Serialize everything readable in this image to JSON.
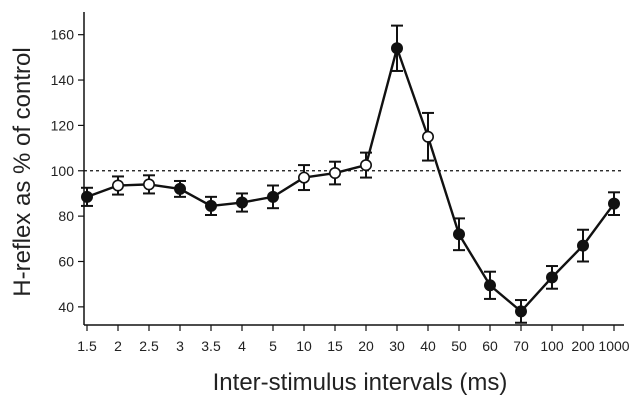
{
  "chart_data": {
    "type": "line",
    "xlabel": "Inter-stimulus intervals (ms)",
    "ylabel": "H-reflex as % of control",
    "ylim": [
      32,
      170
    ],
    "yticks": [
      40,
      60,
      80,
      100,
      120,
      140,
      160
    ],
    "reference_line": 100,
    "grid": false,
    "categories": [
      "1.5",
      "2",
      "2.5",
      "3",
      "3.5",
      "4",
      "5",
      "10",
      "15",
      "20",
      "30",
      "40",
      "50",
      "60",
      "70",
      "100",
      "200",
      "1000"
    ],
    "values": [
      88.5,
      93.5,
      94,
      92,
      84.5,
      86,
      88.5,
      97,
      99,
      102.5,
      154,
      115,
      72,
      49.5,
      38,
      53,
      67,
      85.5
    ],
    "errors": [
      4,
      4,
      4,
      3.5,
      4,
      4,
      5,
      5.5,
      5,
      5.5,
      10,
      10.5,
      7,
      6,
      5,
      5,
      7,
      5
    ],
    "marker_style": [
      "filled",
      "open",
      "open",
      "filled",
      "filled",
      "filled",
      "filled",
      "open",
      "open",
      "open",
      "filled",
      "open",
      "filled",
      "filled",
      "filled",
      "filled",
      "filled",
      "filled"
    ],
    "colors": {
      "line": "#111111",
      "filled_marker": "#111111",
      "open_marker_fill": "#ffffff"
    }
  }
}
